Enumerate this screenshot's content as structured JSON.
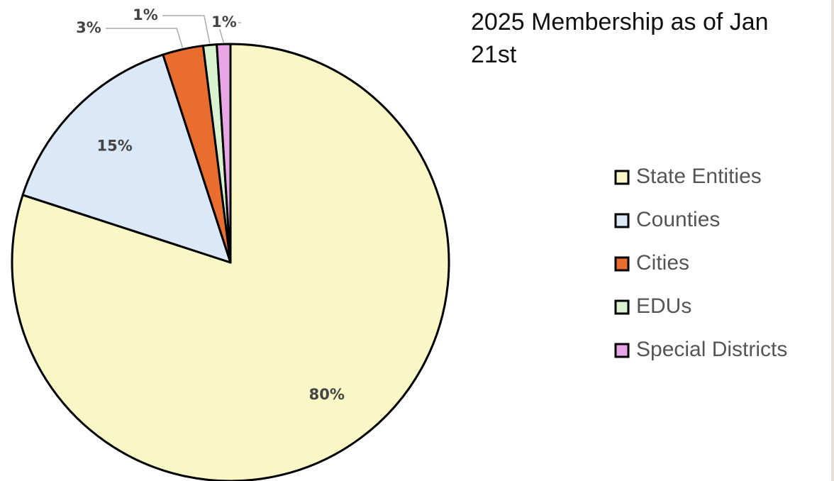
{
  "chart_data": {
    "type": "pie",
    "title": "2025 Membership as of Jan 21st",
    "categories": [
      "State Entities",
      "Counties",
      "Cities",
      "EDUs",
      "Special Districts"
    ],
    "values": [
      80,
      15,
      3,
      1,
      1
    ],
    "value_labels": [
      "80%",
      "15%",
      "3%",
      "1%",
      "1%"
    ],
    "colors": [
      "#faf7c6",
      "#dae8f7",
      "#e96d2e",
      "#d9f2d0",
      "#e9a6e6"
    ],
    "legend": "right"
  }
}
